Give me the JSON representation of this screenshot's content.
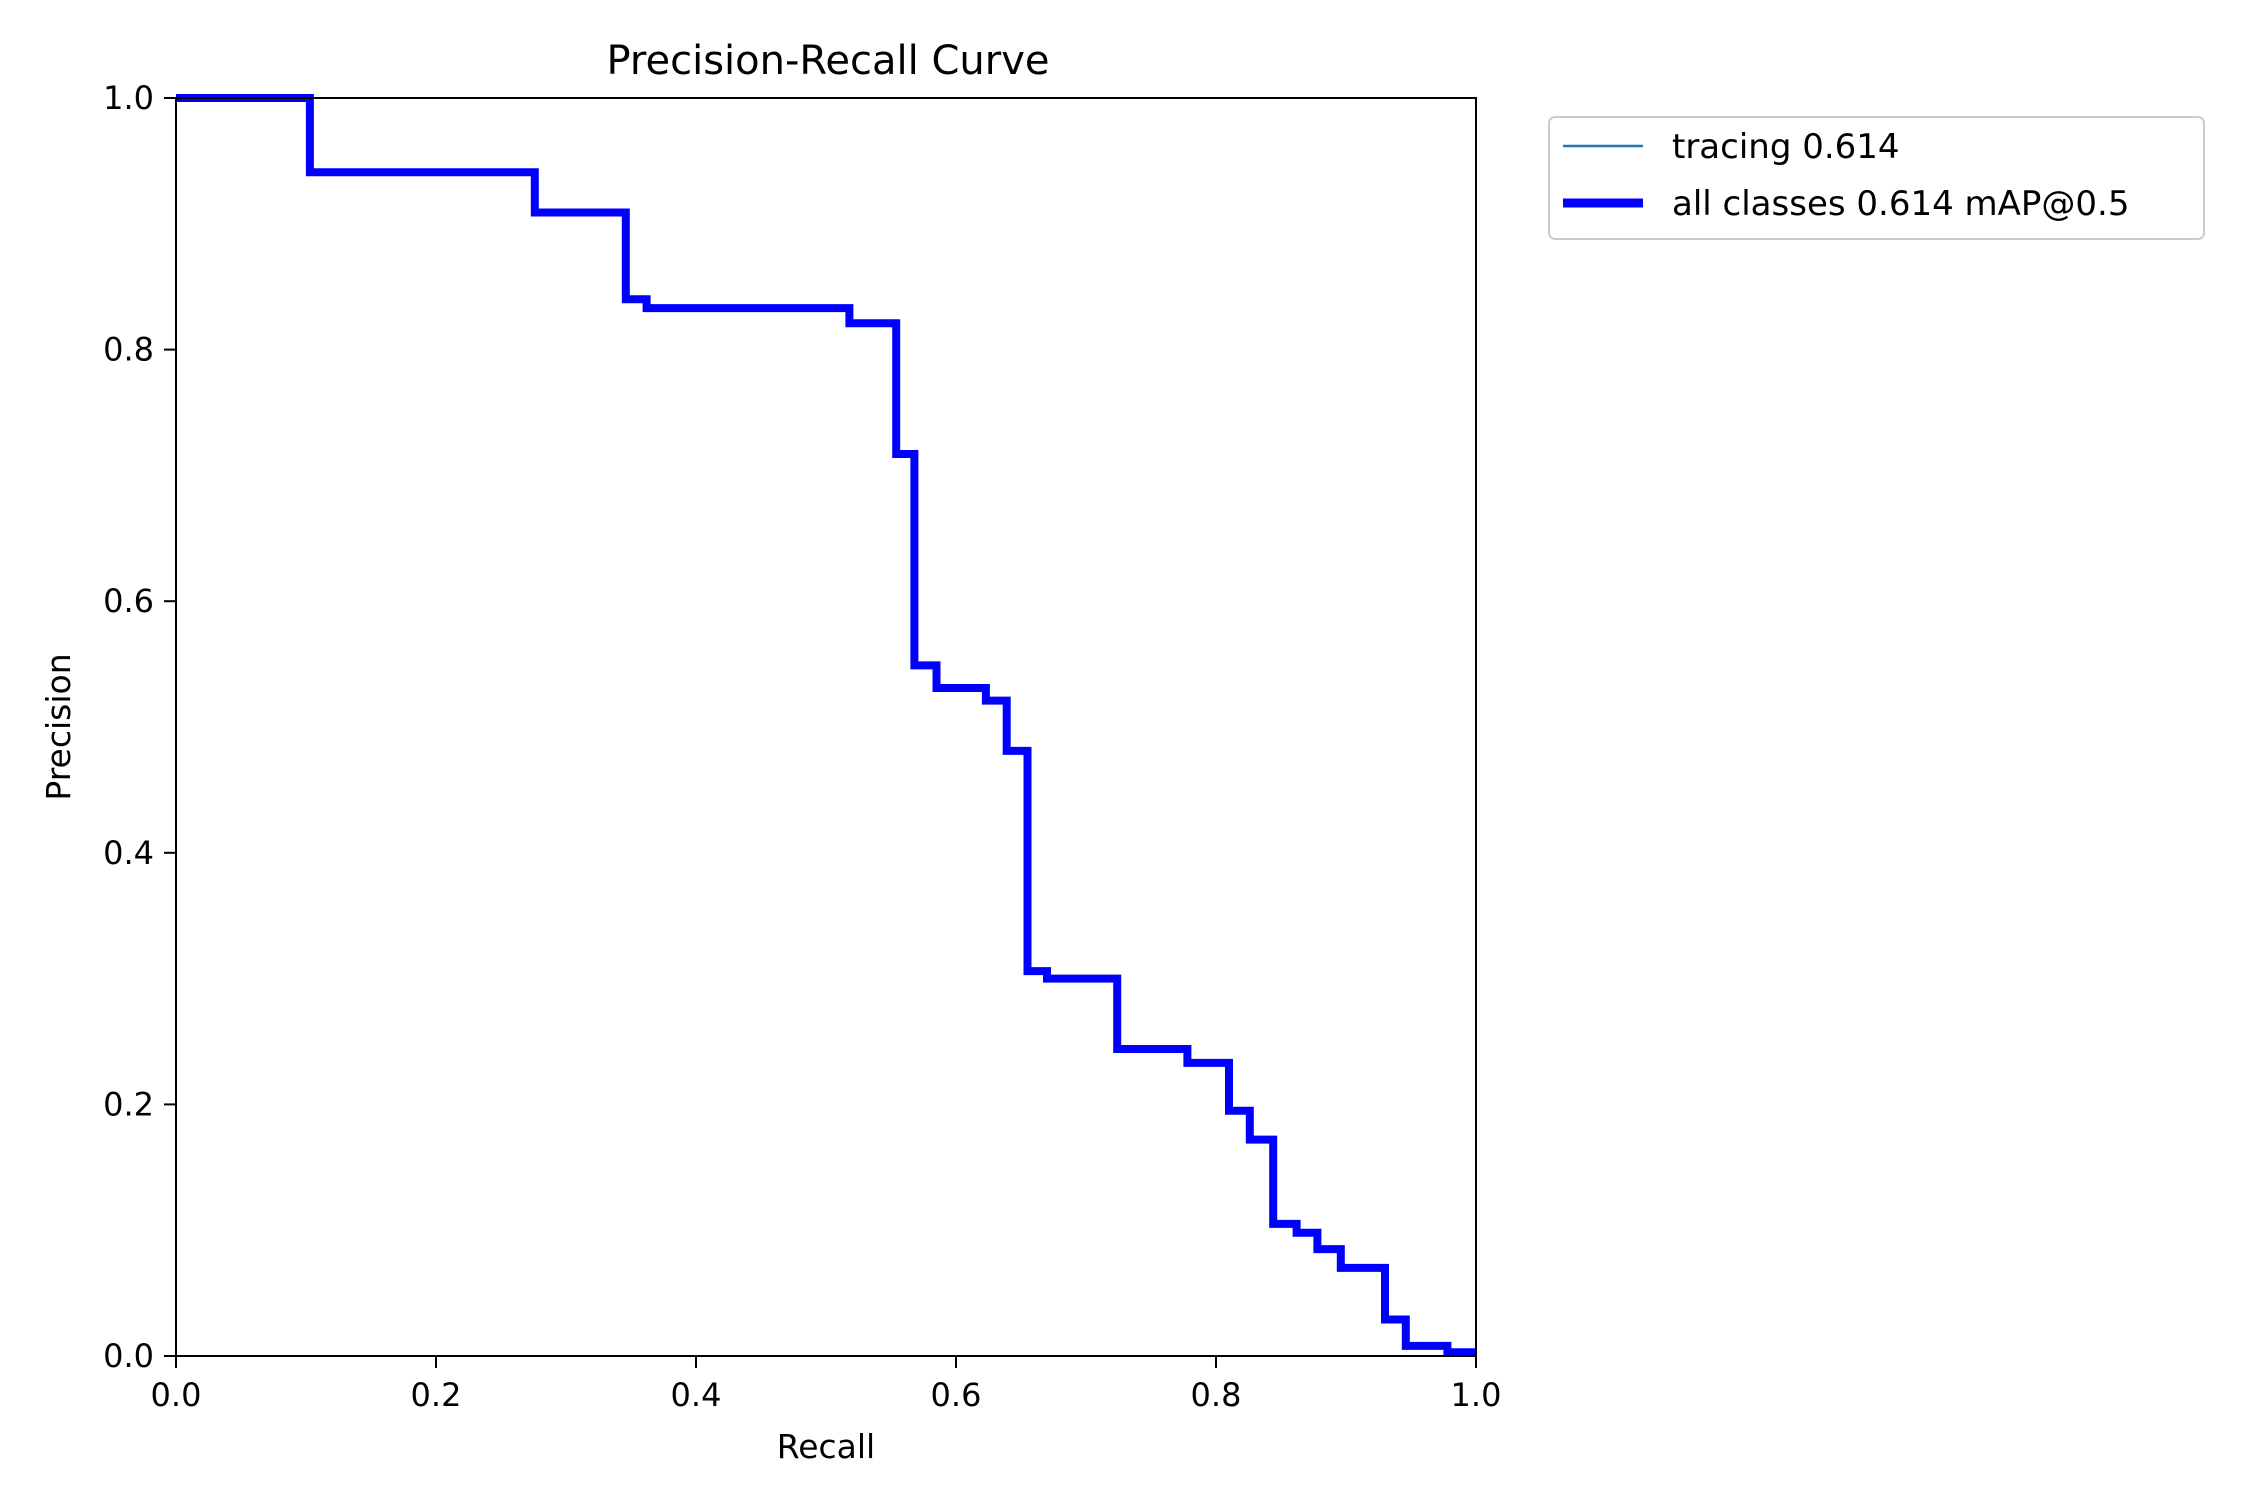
{
  "chart_data": {
    "type": "line",
    "title": "Precision-Recall Curve",
    "xlabel": "Recall",
    "ylabel": "Precision",
    "xlim": [
      0,
      1
    ],
    "ylim": [
      0,
      1
    ],
    "xticks": [
      "0.0",
      "0.2",
      "0.4",
      "0.6",
      "0.8",
      "1.0"
    ],
    "yticks": [
      "0.0",
      "0.2",
      "0.4",
      "0.6",
      "0.8",
      "1.0"
    ],
    "grid": false,
    "legend_position": "outside upper right",
    "series": [
      {
        "name": "tracing 0.614",
        "color": "#1f77b4",
        "style": "thin",
        "x": [
          0.0,
          0.103,
          0.103,
          0.276,
          0.276,
          0.346,
          0.346,
          0.362,
          0.362,
          0.518,
          0.518,
          0.554,
          0.554,
          0.568,
          0.568,
          0.585,
          0.585,
          0.623,
          0.623,
          0.639,
          0.639,
          0.655,
          0.655,
          0.67,
          0.67,
          0.724,
          0.724,
          0.778,
          0.778,
          0.81,
          0.81,
          0.826,
          0.826,
          0.844,
          0.844,
          0.862,
          0.862,
          0.878,
          0.878,
          0.896,
          0.896,
          0.93,
          0.93,
          0.946,
          0.946,
          0.978,
          0.978,
          1.0
        ],
        "y": [
          1.0,
          1.0,
          0.941,
          0.941,
          0.909,
          0.909,
          0.84,
          0.84,
          0.833,
          0.833,
          0.821,
          0.821,
          0.717,
          0.717,
          0.549,
          0.549,
          0.531,
          0.531,
          0.521,
          0.521,
          0.481,
          0.481,
          0.306,
          0.306,
          0.3,
          0.3,
          0.244,
          0.244,
          0.233,
          0.233,
          0.195,
          0.195,
          0.172,
          0.172,
          0.105,
          0.105,
          0.098,
          0.098,
          0.085,
          0.085,
          0.07,
          0.07,
          0.029,
          0.029,
          0.008,
          0.008,
          0.003,
          0.003
        ]
      },
      {
        "name": "all classes 0.614 mAP@0.5",
        "color": "#0000ff",
        "style": "thick",
        "x": [
          0.0,
          0.103,
          0.103,
          0.276,
          0.276,
          0.346,
          0.346,
          0.362,
          0.362,
          0.518,
          0.518,
          0.554,
          0.554,
          0.568,
          0.568,
          0.585,
          0.585,
          0.623,
          0.623,
          0.639,
          0.639,
          0.655,
          0.655,
          0.67,
          0.67,
          0.724,
          0.724,
          0.778,
          0.778,
          0.81,
          0.81,
          0.826,
          0.826,
          0.844,
          0.844,
          0.862,
          0.862,
          0.878,
          0.878,
          0.896,
          0.896,
          0.93,
          0.93,
          0.946,
          0.946,
          0.978,
          0.978,
          1.0
        ],
        "y": [
          1.0,
          1.0,
          0.941,
          0.941,
          0.909,
          0.909,
          0.84,
          0.84,
          0.833,
          0.833,
          0.821,
          0.821,
          0.717,
          0.717,
          0.549,
          0.549,
          0.531,
          0.531,
          0.521,
          0.521,
          0.481,
          0.481,
          0.306,
          0.306,
          0.3,
          0.3,
          0.244,
          0.244,
          0.233,
          0.233,
          0.195,
          0.195,
          0.172,
          0.172,
          0.105,
          0.105,
          0.098,
          0.098,
          0.085,
          0.085,
          0.07,
          0.07,
          0.029,
          0.029,
          0.008,
          0.008,
          0.003,
          0.003
        ]
      }
    ]
  }
}
